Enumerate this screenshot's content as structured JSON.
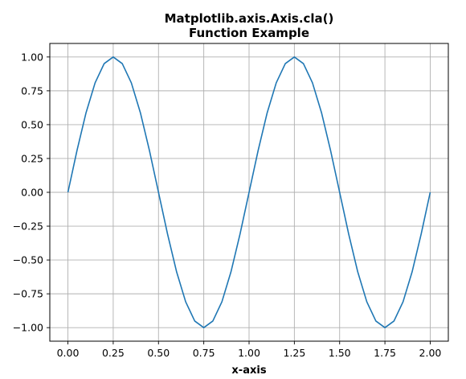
{
  "chart_data": {
    "type": "line",
    "title": [
      "Matplotlib.axis.Axis.cla()",
      "Function Example"
    ],
    "xlabel": "x-axis",
    "ylabel": "",
    "xlim": [
      -0.1,
      2.1
    ],
    "ylim": [
      -1.1,
      1.1
    ],
    "grid": true,
    "x_ticks": [
      0.0,
      0.25,
      0.5,
      0.75,
      1.0,
      1.25,
      1.5,
      1.75,
      2.0
    ],
    "x_tick_labels": [
      "0.00",
      "0.25",
      "0.50",
      "0.75",
      "1.00",
      "1.25",
      "1.50",
      "1.75",
      "2.00"
    ],
    "y_ticks": [
      1.0,
      0.75,
      0.5,
      0.25,
      0.0,
      -0.25,
      -0.5,
      -0.75,
      -1.0
    ],
    "y_tick_labels": [
      "1.00",
      "0.75",
      "0.50",
      "0.25",
      "0.00",
      "−0.25",
      "−0.50",
      "−0.75",
      "−1.00"
    ],
    "series": [
      {
        "color": "#1f77b4",
        "x": [
          0.0,
          0.05,
          0.1,
          0.15,
          0.2,
          0.25,
          0.3,
          0.35,
          0.4,
          0.45,
          0.5,
          0.55,
          0.6,
          0.65,
          0.7,
          0.75,
          0.8,
          0.85,
          0.9,
          0.95,
          1.0,
          1.05,
          1.1,
          1.15,
          1.2,
          1.25,
          1.3,
          1.35,
          1.4,
          1.45,
          1.5,
          1.55,
          1.6,
          1.65,
          1.7,
          1.75,
          1.8,
          1.85,
          1.9,
          1.95,
          2.0
        ],
        "y": [
          0.0,
          0.309,
          0.588,
          0.809,
          0.951,
          1.0,
          0.951,
          0.809,
          0.588,
          0.309,
          0.0,
          -0.309,
          -0.588,
          -0.809,
          -0.951,
          -1.0,
          -0.951,
          -0.809,
          -0.588,
          -0.309,
          0.0,
          0.309,
          0.588,
          0.809,
          0.951,
          1.0,
          0.951,
          0.809,
          0.588,
          0.309,
          0.0,
          -0.309,
          -0.588,
          -0.809,
          -0.951,
          -1.0,
          -0.951,
          -0.809,
          -0.588,
          -0.309,
          0.0
        ]
      }
    ]
  }
}
